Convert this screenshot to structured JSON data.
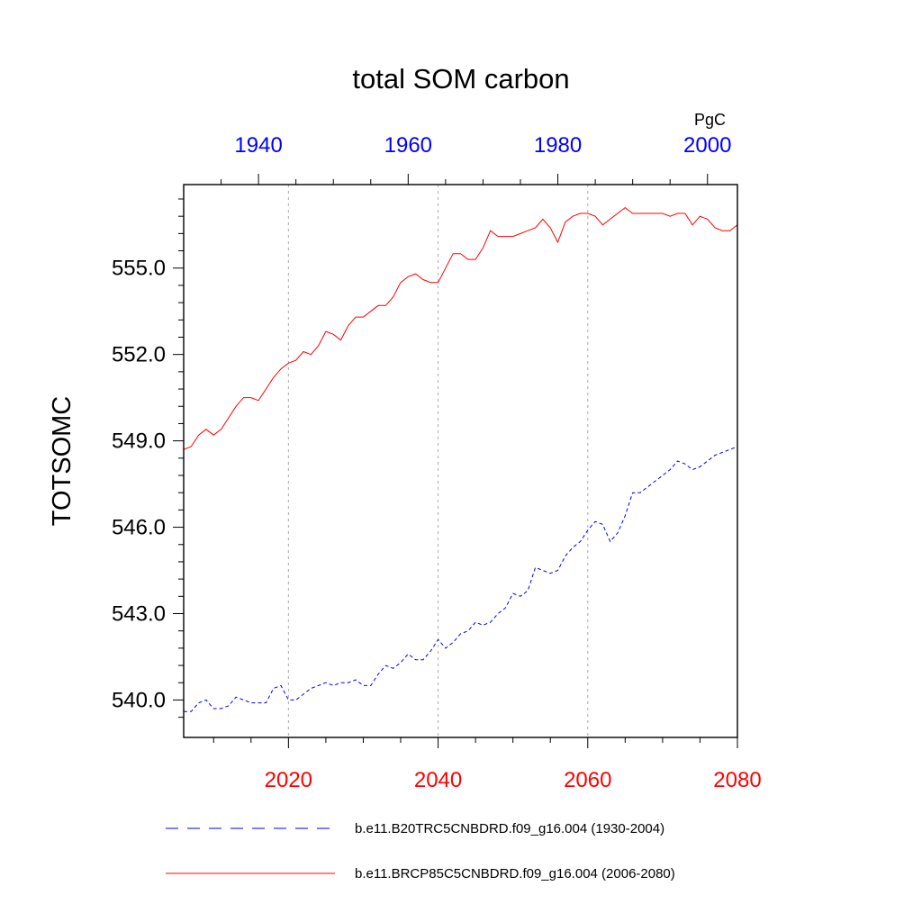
{
  "chart_data": {
    "type": "line",
    "title": "total SOM carbon",
    "ylabel": "TOTSOMC",
    "units": "PgC",
    "ylim": [
      538.7,
      557.9
    ],
    "yticks": [
      "540.0",
      "543.0",
      "546.0",
      "549.0",
      "552.0",
      "555.0"
    ],
    "x_bottom": {
      "range": [
        2006,
        2080
      ],
      "ticks": [
        "2020",
        "2040",
        "2060",
        "2080"
      ],
      "color": "#ff0000"
    },
    "x_top": {
      "range": [
        1930,
        2004
      ],
      "ticks": [
        "1940",
        "1960",
        "1980",
        "2000"
      ],
      "color": "#0000ff"
    },
    "grid": "vertical dotted at major bottom ticks",
    "legend_position": "bottom",
    "series": [
      {
        "name": "b.e11.B20TRC5CNBDRD.f09_g16.004 (1930-2004)",
        "axis": "top",
        "color": "#0000ff",
        "style": "dashed",
        "x_start": 1930,
        "values": [
          539.6,
          539.6,
          539.9,
          540.0,
          539.7,
          539.7,
          539.8,
          540.1,
          540.0,
          539.9,
          539.9,
          539.9,
          540.4,
          540.5,
          540.0,
          540.0,
          540.2,
          540.4,
          540.5,
          540.6,
          540.5,
          540.6,
          540.6,
          540.7,
          540.5,
          540.5,
          540.9,
          541.2,
          541.1,
          541.3,
          541.6,
          541.4,
          541.4,
          541.7,
          542.1,
          541.8,
          542.0,
          542.3,
          542.4,
          542.7,
          542.6,
          542.7,
          543.0,
          543.2,
          543.7,
          543.6,
          543.8,
          544.6,
          544.5,
          544.4,
          544.5,
          545.0,
          545.3,
          545.5,
          545.9,
          546.2,
          546.1,
          545.5,
          545.8,
          546.4,
          547.2,
          547.2,
          547.4,
          547.6,
          547.8,
          548.0,
          548.3,
          548.2,
          548.0,
          548.1,
          548.3,
          548.5,
          548.6,
          548.7,
          548.8
        ]
      },
      {
        "name": "b.e11.BRCP85C5CNBDRD.f09_g16.004 (2006-2080)",
        "axis": "bottom",
        "color": "#ff0000",
        "style": "solid",
        "x_start": 2006,
        "values": [
          548.7,
          548.8,
          549.2,
          549.4,
          549.2,
          549.4,
          549.8,
          550.2,
          550.5,
          550.5,
          550.4,
          550.8,
          551.2,
          551.5,
          551.7,
          551.8,
          552.1,
          552.0,
          552.3,
          552.8,
          552.7,
          552.5,
          553.0,
          553.3,
          553.3,
          553.5,
          553.7,
          553.7,
          554.0,
          554.5,
          554.7,
          554.8,
          554.6,
          554.5,
          554.5,
          555.0,
          555.5,
          555.5,
          555.3,
          555.3,
          555.7,
          556.3,
          556.1,
          556.1,
          556.1,
          556.2,
          556.3,
          556.4,
          556.7,
          556.4,
          555.9,
          556.6,
          556.8,
          556.9,
          556.9,
          556.8,
          556.5,
          556.7,
          556.9,
          557.1,
          556.9,
          556.9,
          556.9,
          556.9,
          556.9,
          556.8,
          556.9,
          556.9,
          556.5,
          556.8,
          556.7,
          556.4,
          556.3,
          556.3,
          556.5
        ]
      }
    ]
  }
}
